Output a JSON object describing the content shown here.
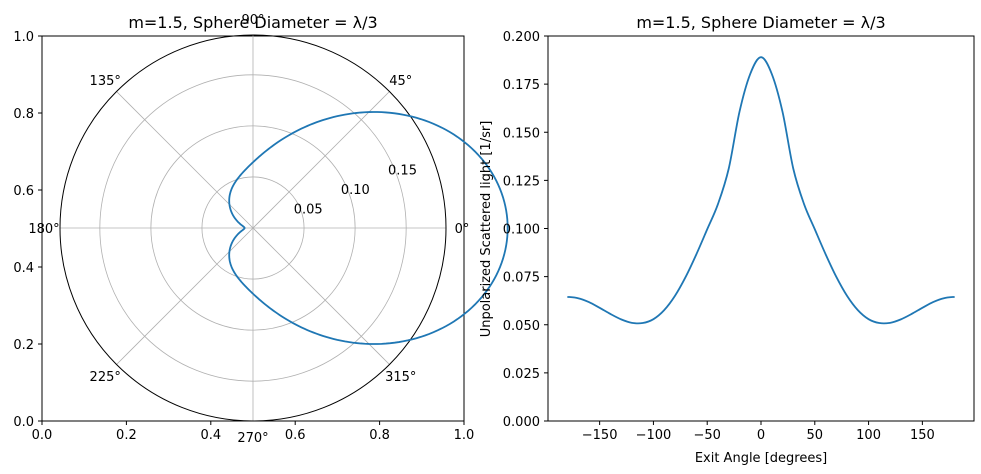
{
  "chart_data": [
    {
      "type": "line",
      "projection": "polar",
      "title": "m=1.5, Sphere Diameter = λ/3",
      "cartesian_frame": {
        "xticks": [
          "0.0",
          "0.2",
          "0.4",
          "0.6",
          "0.8",
          "1.0"
        ],
        "yticks": [
          "0.0",
          "0.2",
          "0.4",
          "0.6",
          "0.8",
          "1.0"
        ]
      },
      "angle_ticks": [
        "0°",
        "45°",
        "90°",
        "135°",
        "180°",
        "225°",
        "270°",
        "315°"
      ],
      "radial_ticks": [
        "0.05",
        "0.10",
        "0.15"
      ],
      "radial_tick_values": [
        0.05,
        0.1,
        0.15
      ],
      "rmax": 0.189,
      "grid": true,
      "series_color": "#1f77b4",
      "function": "0.0644*(1+cos(theta)^2) + 0.0603*(cos(theta)+cos(theta)^3)"
    },
    {
      "type": "line",
      "title": "m=1.5, Sphere Diameter = λ/3",
      "xlabel": "Exit Angle [degrees]",
      "ylabel": "Unpolarized Scattered light [1/sr]",
      "xlim": [
        -198,
        198
      ],
      "ylim": [
        0,
        0.2
      ],
      "xticks": [
        -150,
        -100,
        -50,
        0,
        50,
        100,
        150
      ],
      "xtick_labels": [
        "−150",
        "−100",
        "−50",
        "0",
        "50",
        "100",
        "150"
      ],
      "yticks": [
        0,
        0.025,
        0.05,
        0.075,
        0.1,
        0.125,
        0.15,
        0.175,
        0.2
      ],
      "ytick_labels": [
        "0.000",
        "0.025",
        "0.050",
        "0.075",
        "0.100",
        "0.125",
        "0.150",
        "0.175",
        "0.200"
      ],
      "series_color": "#1f77b4",
      "x": [
        -180,
        -170,
        -160,
        -150,
        -140,
        -130,
        -120,
        -110,
        -100,
        -90,
        -80,
        -70,
        -60,
        -50,
        -40,
        -30,
        -20,
        -10,
        0,
        10,
        20,
        30,
        40,
        50,
        60,
        70,
        80,
        90,
        100,
        110,
        120,
        130,
        140,
        150,
        160,
        170,
        180
      ],
      "y": [
        0.0645,
        0.0638,
        0.0618,
        0.0588,
        0.0556,
        0.0528,
        0.051,
        0.0509,
        0.0529,
        0.0576,
        0.065,
        0.0749,
        0.0867,
        0.0996,
        0.1127,
        0.1311,
        0.1606,
        0.1803,
        0.189,
        0.1803,
        0.1606,
        0.1311,
        0.1127,
        0.0996,
        0.0867,
        0.0749,
        0.065,
        0.0576,
        0.0529,
        0.0509,
        0.051,
        0.0528,
        0.0556,
        0.0588,
        0.0618,
        0.0638,
        0.0645
      ]
    }
  ]
}
